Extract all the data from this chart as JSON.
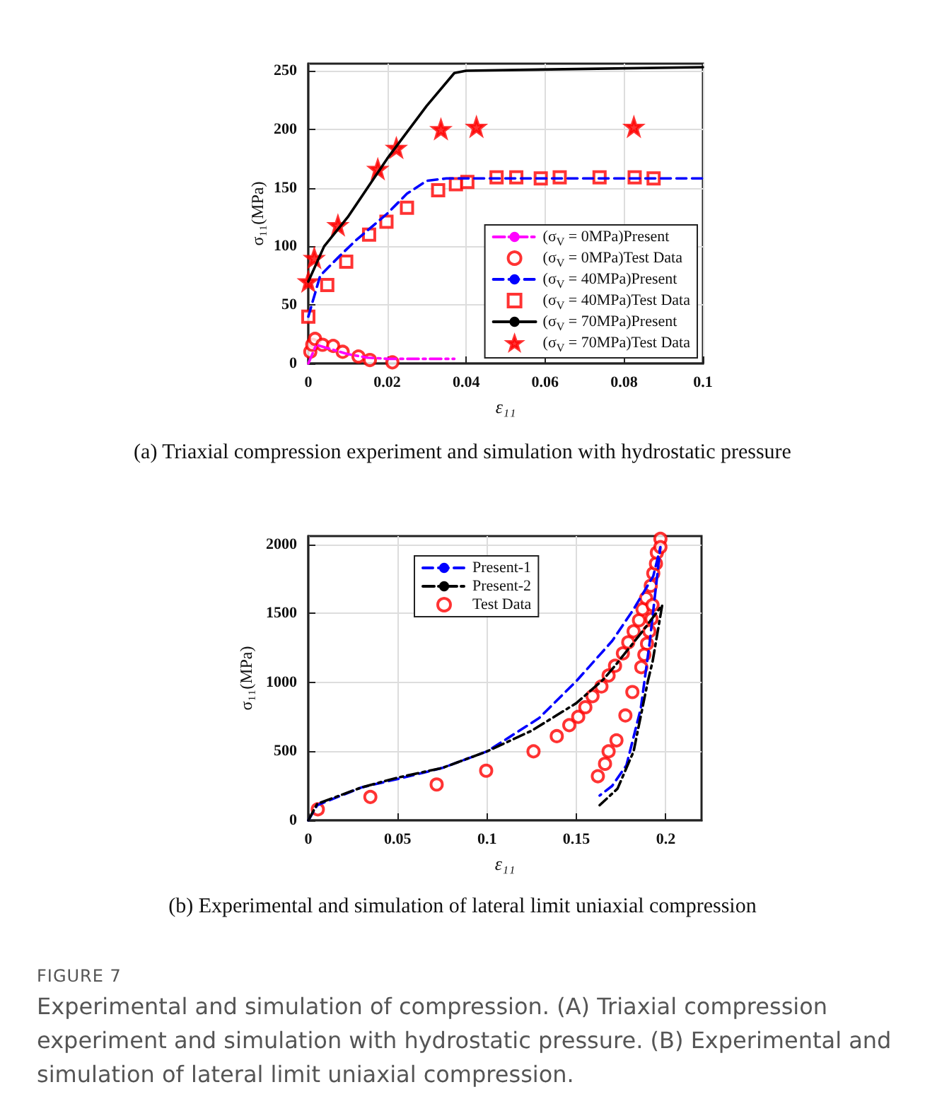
{
  "chart_data": [
    {
      "type": "line",
      "xlabel": "ε₁₁",
      "ylabel": "σ₁₁(MPa)",
      "xlim": [
        0,
        0.1
      ],
      "ylim": [
        0,
        256
      ],
      "xticks": [
        0,
        0.02,
        0.04,
        0.06,
        0.08,
        0.1
      ],
      "yticks": [
        0,
        50,
        100,
        150,
        200,
        250
      ],
      "grid": true,
      "legend": "bottom right",
      "annotations": [
        "(a)  Triaxial compression experiment and simulation with hydrostatic pressure"
      ],
      "series": [
        {
          "name": "(σ$_{V}$ = 0MPa)Present",
          "type": "line",
          "color": "#ff00ff",
          "line_style": "dashdot",
          "marker": "none",
          "x": [
            0,
            0.002,
            0.006,
            0.01,
            0.015,
            0.02,
            0.037
          ],
          "values": [
            0,
            16,
            12,
            8,
            5,
            4,
            4
          ]
        },
        {
          "name": "(σ$_{V}$ = 0MPa)Test Data",
          "type": "scatter",
          "color": "#ff0000",
          "marker": "circle",
          "x": [
            0.0005,
            0.001,
            0.0017,
            0.0036,
            0.0063,
            0.0087,
            0.0127,
            0.0156,
            0.0213
          ],
          "values": [
            10,
            16,
            21,
            16,
            15,
            10,
            6,
            3,
            1
          ]
        },
        {
          "name": "(σ$_{V}$ = 40MPa)Present",
          "type": "line",
          "color": "#0000ff",
          "line_style": "dashed",
          "marker": "none",
          "x": [
            0,
            0.003,
            0.008,
            0.012,
            0.02,
            0.025,
            0.03,
            0.035,
            0.1
          ],
          "values": [
            40,
            75,
            92,
            105,
            128,
            145,
            156,
            158,
            158
          ]
        },
        {
          "name": "(σ$_{V}$ = 40MPa)Test Data",
          "type": "scatter",
          "color": "#ff0000",
          "marker": "square",
          "x": [
            0,
            0.0048,
            0.0096,
            0.0154,
            0.0198,
            0.025,
            0.0329,
            0.0374,
            0.0403,
            0.0477,
            0.0527,
            0.0589,
            0.0637,
            0.0738,
            0.0827,
            0.0875
          ],
          "values": [
            40,
            67,
            87,
            110,
            121,
            133,
            148,
            153,
            155,
            159,
            159,
            158,
            159,
            159,
            159,
            158
          ]
        },
        {
          "name": "(σ$_{V}$ = 70MPa)Present",
          "type": "line",
          "color": "#000000",
          "line_style": "solid",
          "marker": "none",
          "x": [
            0,
            0.004,
            0.01,
            0.02,
            0.03,
            0.037,
            0.04,
            0.1
          ],
          "values": [
            70,
            100,
            125,
            175,
            220,
            248,
            250,
            253
          ]
        },
        {
          "name": "(σ$_{V}$ = 70MPa)Test Data",
          "type": "scatter",
          "color": "#ff0000",
          "marker": "star",
          "x": [
            0,
            0.0015,
            0.0075,
            0.0176,
            0.0223,
            0.0336,
            0.0426,
            0.0825
          ],
          "values": [
            70,
            90,
            118,
            166,
            184,
            200,
            202,
            202
          ]
        }
      ]
    },
    {
      "type": "line",
      "xlabel": "ε₁₁",
      "ylabel": "σ₁₁(MPa)",
      "xlim": [
        0,
        0.22
      ],
      "ylim": [
        0,
        2060
      ],
      "xticks": [
        0,
        0.05,
        0.1,
        0.15,
        0.2
      ],
      "yticks": [
        0,
        500,
        1000,
        1500,
        2000
      ],
      "grid": true,
      "legend": "top",
      "annotations": [
        "(b) Experimental and simulation of lateral limit uniaxial compression",
        "FIGURE 7",
        "Experimental and simulation of compression. (A) Triaxial compression experiment and simulation with hydrostatic pressure. (B) Experimental and simulation of lateral limit uniaxial compression."
      ],
      "series": [
        {
          "name": "Present-1",
          "type": "line",
          "color": "#0000ff",
          "line_style": "dashed",
          "marker": "none",
          "x": [
            0,
            0.005,
            0.03,
            0.05,
            0.075,
            0.1,
            0.129,
            0.15,
            0.17,
            0.182,
            0.193,
            0.197,
            0.191,
            0.186,
            0.178,
            0.17,
            0.163
          ],
          "values": [
            0,
            110,
            240,
            300,
            380,
            500,
            740,
            1010,
            1300,
            1530,
            1770,
            1980,
            1290,
            810,
            400,
            250,
            180
          ]
        },
        {
          "name": "Present-2",
          "type": "line",
          "color": "#000000",
          "line_style": "dashdot",
          "marker": "none",
          "x": [
            0,
            0.005,
            0.03,
            0.05,
            0.075,
            0.1,
            0.125,
            0.15,
            0.165,
            0.1716,
            0.187,
            0.198,
            0.1926,
            0.19,
            0.182,
            0.173,
            0.163
          ],
          "values": [
            0,
            120,
            240,
            310,
            380,
            500,
            650,
            850,
            1020,
            1120,
            1370,
            1560,
            1150,
            1010,
            500,
            230,
            110
          ]
        },
        {
          "name": "Test Data",
          "type": "scatter",
          "color": "#ff0000",
          "marker": "circle",
          "x": [
            0.0053,
            0.0347,
            0.0718,
            0.0995,
            0.126,
            0.139,
            0.146,
            0.151,
            0.155,
            0.159,
            0.164,
            0.168,
            0.1716,
            0.176,
            0.179,
            0.182,
            0.185,
            0.187,
            0.189,
            0.1916,
            0.193,
            0.1945,
            0.195,
            0.197,
            0.197,
            0.1926,
            0.192,
            0.1908,
            0.1895,
            0.188,
            0.1863,
            0.1813,
            0.1774,
            0.1724,
            0.168,
            0.166,
            0.162
          ],
          "values": [
            80,
            170,
            260,
            360,
            500,
            610,
            690,
            750,
            820,
            900,
            970,
            1050,
            1120,
            1210,
            1290,
            1370,
            1450,
            1530,
            1610,
            1700,
            1790,
            1860,
            1940,
            2040,
            1980,
            1560,
            1460,
            1370,
            1280,
            1200,
            1110,
            930,
            760,
            580,
            500,
            410,
            320
          ]
        }
      ]
    }
  ]
}
